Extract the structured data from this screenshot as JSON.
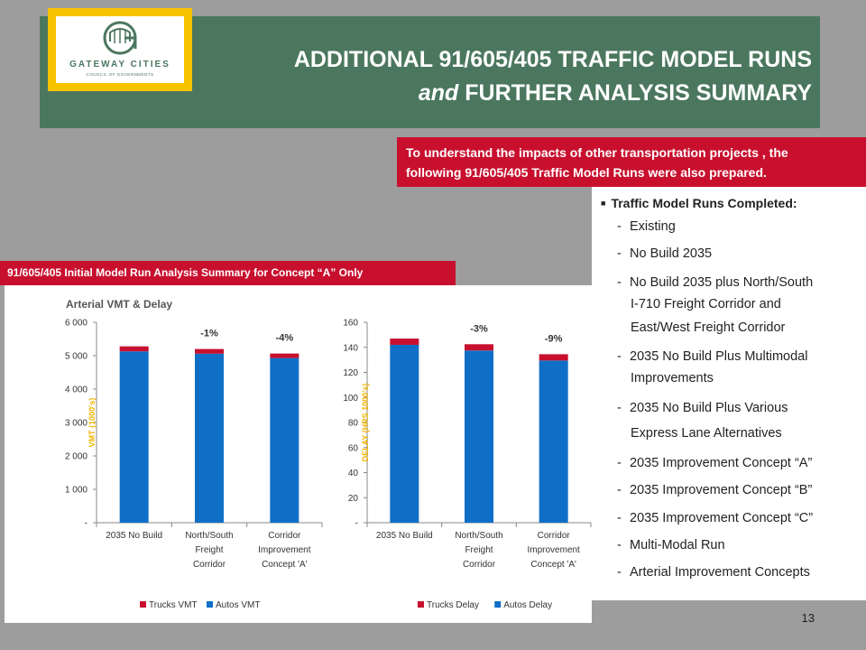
{
  "title": {
    "line1": "ADDITIONAL 91/605/405 TRAFFIC MODEL RUNS",
    "line2_italic": "and",
    "line2_rest": " FURTHER ANALYSIS SUMMARY"
  },
  "logo": {
    "name": "GATEWAY CITIES",
    "sub": "COUNCIL OF GOVERNMENTS",
    "letter": "G"
  },
  "intro": {
    "line1": "To understand the impacts of other transportation projects , the",
    "line2": "following 91/605/405 Traffic Model Runs were also prepared."
  },
  "runs": {
    "heading": "Traffic Model Runs Completed:",
    "items": [
      "Existing",
      "No Build 2035",
      "No Build 2035 plus North/South",
      "2035 No Build Plus Multimodal",
      "2035 No Build Plus Various",
      "2035 Improvement Concept “A”",
      "2035 Improvement Concept “B”",
      "2035 Improvement Concept “C”",
      "Multi-Modal Run",
      "Arterial Improvement Concepts"
    ],
    "continuations": [
      "I-710 Freight Corridor and",
      "East/West Freight Corridor",
      "Improvements",
      "Express Lane Alternatives"
    ]
  },
  "analysis_label": "91/605/405 Initial Model Run Analysis Summary for Concept “A” Only",
  "charts_heading": "Arterial VMT & Delay",
  "colors": {
    "autos": "#0f6fc6",
    "trucks": "#c8102e",
    "band": "#4b775e",
    "red": "#c8102e",
    "gold": "#f7c300",
    "axis_title": "#f0b400"
  },
  "chart_data": [
    {
      "type": "bar",
      "stacked": true,
      "categories": [
        [
          "2035 No Build"
        ],
        [
          "North/South",
          "Freight",
          "Corridor"
        ],
        [
          "Corridor",
          "Improvement",
          "Concept 'A'"
        ]
      ],
      "series": [
        {
          "name": "Autos VMT",
          "values": [
            5130,
            5060,
            4930
          ]
        },
        {
          "name": "Trucks VMT",
          "values": [
            150,
            140,
            135
          ]
        }
      ],
      "annotations": [
        "",
        "-1%",
        "-4%"
      ],
      "ylabel": "VMT  (1000's)",
      "ylim": [
        0,
        6000
      ],
      "yticks": [
        "-",
        "1 000",
        "2 000",
        "3 000",
        "4 000",
        "5 000",
        "6 000"
      ],
      "legend": [
        {
          "label": "Trucks VMT",
          "series": 1
        },
        {
          "label": "Autos VMT",
          "series": 0
        }
      ]
    },
    {
      "type": "bar",
      "stacked": true,
      "categories": [
        [
          "2035 No Build"
        ],
        [
          "North/South",
          "Freight",
          "Corridor"
        ],
        [
          "Corridor",
          "Improvement",
          "Concept 'A'"
        ]
      ],
      "series": [
        {
          "name": "Autos Delay",
          "values": [
            142,
            137.5,
            129.5
          ]
        },
        {
          "name": "Trucks Delay",
          "values": [
            5,
            5,
            5
          ]
        }
      ],
      "annotations": [
        "",
        "-3%",
        "-9%"
      ],
      "ylabel": "DELAY (HRS  1000's)",
      "ylim": [
        0,
        160
      ],
      "yticks": [
        "-",
        "20",
        "40",
        "60",
        "80",
        "100",
        "120",
        "140",
        "160"
      ],
      "legend": [
        {
          "label": "Trucks Delay",
          "series": 1
        },
        {
          "label": "Autos Delay",
          "series": 0
        }
      ]
    }
  ],
  "slide_number": "13"
}
